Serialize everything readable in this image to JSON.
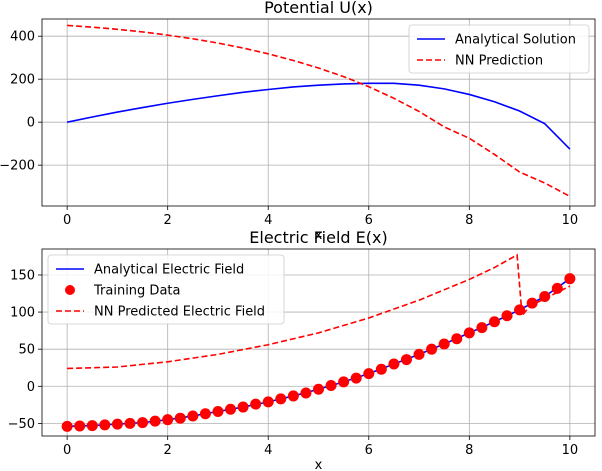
{
  "chart_data": [
    {
      "type": "line",
      "title": "Potential U(x)",
      "xlabel": "x",
      "ylabel": "",
      "xlim": [
        -0.5,
        10.5
      ],
      "ylim": [
        -390,
        480
      ],
      "xticks": [
        0,
        2,
        4,
        6,
        8,
        10
      ],
      "yticks": [
        -200,
        0,
        200,
        400
      ],
      "xtick_labels": [
        "0",
        "2",
        "4",
        "6",
        "8",
        "10"
      ],
      "ytick_labels": [
        "−200",
        "0",
        "200",
        "400"
      ],
      "grid": true,
      "legend_position": "top-right",
      "series": [
        {
          "name": "Analytical Solution",
          "style": "solid",
          "color": "#0000ff",
          "x": [
            0,
            0.5,
            1,
            1.5,
            2,
            2.5,
            3,
            3.5,
            4,
            4.5,
            5,
            5.5,
            6,
            6.5,
            7,
            7.5,
            8,
            8.5,
            9,
            9.5,
            10
          ],
          "y": [
            0,
            24,
            47,
            68,
            88,
            106,
            123,
            139,
            152,
            164,
            172,
            178,
            181,
            181,
            172,
            155,
            129,
            95,
            52,
            -7,
            -125
          ]
        },
        {
          "name": "NN Prediction",
          "style": "dashed",
          "color": "#ff0000",
          "x": [
            0,
            0.5,
            1,
            1.5,
            2,
            2.5,
            3,
            3.5,
            4,
            4.5,
            5,
            5.5,
            6,
            6.5,
            7,
            7.5,
            8,
            8.5,
            9,
            9.5,
            10
          ],
          "y": [
            450,
            442,
            432,
            420,
            405,
            388,
            368,
            345,
            318,
            287,
            252,
            212,
            165,
            111,
            50,
            -22,
            -75,
            -150,
            -232,
            -283,
            -345
          ]
        }
      ]
    },
    {
      "type": "line",
      "title": "Electric Field E(x)",
      "xlabel": "x",
      "ylabel": "",
      "xlim": [
        -0.5,
        10.5
      ],
      "ylim": [
        -67,
        185
      ],
      "xticks": [
        0,
        2,
        4,
        6,
        8,
        10
      ],
      "yticks": [
        -50,
        0,
        50,
        100,
        150
      ],
      "xtick_labels": [
        "0",
        "2",
        "4",
        "6",
        "8",
        "10"
      ],
      "ytick_labels": [
        "−50",
        "0",
        "50",
        "100",
        "150"
      ],
      "grid": true,
      "legend_position": "top-left",
      "series": [
        {
          "name": "Analytical Electric Field",
          "style": "solid",
          "color": "#0000ff",
          "x": [
            0,
            0.5,
            1,
            1.5,
            2,
            2.5,
            3,
            3.5,
            4,
            4.5,
            5,
            5.5,
            6,
            6.5,
            7,
            7.5,
            8,
            8.5,
            9,
            9.5,
            10
          ],
          "y": [
            -54,
            -53,
            -51,
            -49,
            -45,
            -40,
            -34,
            -28,
            -21,
            -13,
            -4,
            6,
            17,
            30,
            43,
            57,
            72,
            87,
            103,
            121,
            145
          ]
        },
        {
          "name": "Training Data",
          "style": "scatter",
          "color": "#ff0000",
          "x": [
            0,
            0.25,
            0.5,
            0.75,
            1,
            1.25,
            1.5,
            1.75,
            2,
            2.25,
            2.5,
            2.75,
            3,
            3.25,
            3.5,
            3.75,
            4,
            4.25,
            4.5,
            4.75,
            5,
            5.25,
            5.5,
            5.75,
            6,
            6.25,
            6.5,
            6.75,
            7,
            7.25,
            7.5,
            7.75,
            8,
            8.25,
            8.5,
            8.75,
            9,
            9.25,
            9.5,
            9.75,
            10
          ],
          "y": [
            -54,
            -53.5,
            -53,
            -52,
            -51,
            -50,
            -49,
            -47,
            -45,
            -43,
            -40,
            -37,
            -34,
            -31,
            -28,
            -24,
            -21,
            -17,
            -13,
            -9,
            -4,
            1,
            6,
            11,
            17,
            23,
            30,
            36,
            43,
            50,
            57,
            64,
            72,
            79,
            87,
            95,
            103,
            112,
            121,
            132,
            145
          ]
        },
        {
          "name": "NN Predicted Electric Field",
          "style": "dashed",
          "color": "#ff0000",
          "x": [
            0,
            1,
            2,
            3,
            4,
            5,
            6,
            7,
            7.5,
            8,
            8.5,
            8.95,
            9.05,
            9.2,
            9.5,
            10
          ],
          "y": [
            24,
            26,
            33,
            43,
            56,
            72,
            92,
            116,
            130,
            144,
            160,
            177,
            95,
            108,
            118,
            135
          ]
        }
      ]
    }
  ]
}
